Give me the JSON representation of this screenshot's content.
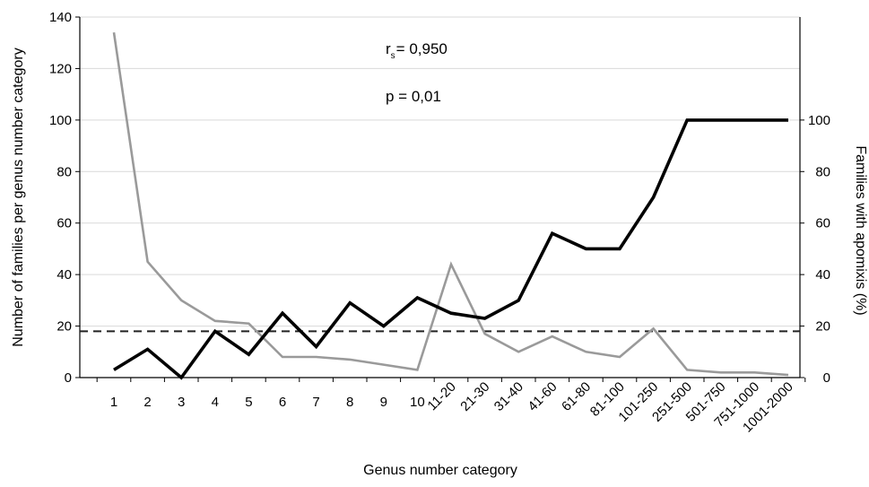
{
  "chart_data": {
    "type": "line",
    "categories": [
      "1",
      "2",
      "3",
      "4",
      "5",
      "6",
      "7",
      "8",
      "9",
      "10",
      "11-20",
      "21-30",
      "31-40",
      "41-60",
      "61-80",
      "81-100",
      "101-250",
      "251-500",
      "501-750",
      "751-1000",
      "1001-2000"
    ],
    "xlabel": "Genus number category",
    "ylabel": "Number of families per genus number category",
    "ylabel_right": "Families with apomixis (%)",
    "ylim": [
      0,
      140
    ],
    "ylim_right": [
      0,
      140
    ],
    "yticks": [
      0,
      20,
      40,
      60,
      80,
      100,
      120,
      140
    ],
    "yticks_right": [
      0,
      20,
      40,
      60,
      80,
      100
    ],
    "grid": true,
    "series": [
      {
        "axis": "left",
        "color": "#9a9a9a",
        "values": [
          134,
          45,
          30,
          22,
          21,
          8,
          8,
          7,
          5,
          3,
          44,
          17,
          10,
          16,
          10,
          8,
          19,
          3,
          2,
          2,
          1
        ]
      },
      {
        "axis": "right",
        "color": "#000000",
        "values": [
          3,
          11,
          0,
          18,
          9,
          25,
          12,
          29,
          20,
          31,
          25,
          23,
          30,
          56,
          50,
          50,
          70,
          100,
          100,
          100,
          100
        ]
      }
    ],
    "reference_line": {
      "axis": "right",
      "value": 18,
      "style": "dashed"
    },
    "annotations": {
      "rs_symbol": "r",
      "rs_subscript": "s",
      "rs_value": "= 0,950",
      "p_text": "p = 0,01"
    }
  }
}
